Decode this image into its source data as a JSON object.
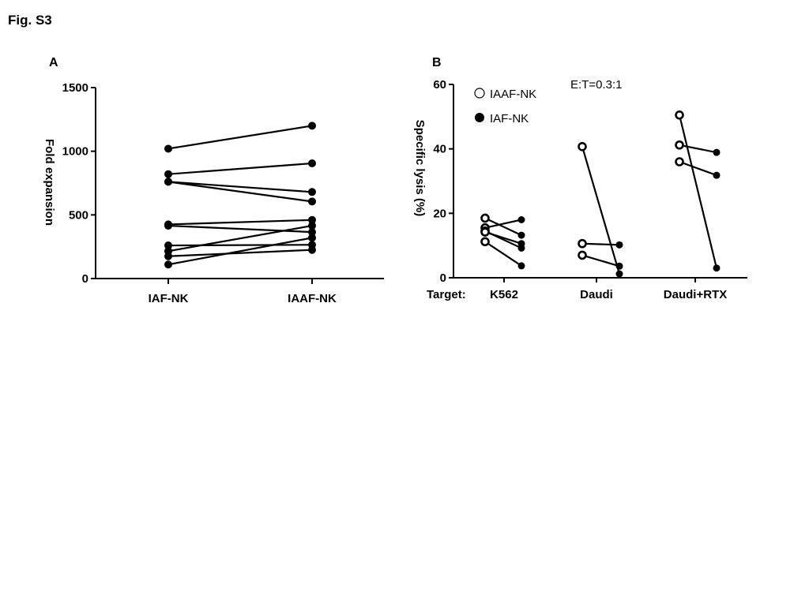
{
  "figure": {
    "title": "Fig. S3"
  },
  "chart_data": [
    {
      "panel_label": "A",
      "type": "scatter",
      "subtype": "paired-dot-plot",
      "ylabel": "Fold expansion",
      "ylim": [
        0,
        1500
      ],
      "yticks": [
        0,
        500,
        1000,
        1500
      ],
      "categories": [
        "IAF-NK",
        "IAAF-NK"
      ],
      "pairs": [
        [
          1020,
          1200
        ],
        [
          820,
          905
        ],
        [
          760,
          680
        ],
        [
          760,
          605
        ],
        [
          425,
          460
        ],
        [
          415,
          365
        ],
        [
          260,
          265
        ],
        [
          215,
          415
        ],
        [
          175,
          225
        ],
        [
          110,
          320
        ]
      ]
    },
    {
      "panel_label": "B",
      "type": "scatter",
      "subtype": "paired-dot-plot",
      "ylabel": "Specific lysis (%)",
      "ylim": [
        0,
        60
      ],
      "yticks": [
        0,
        20,
        40,
        60
      ],
      "xaxis_prefix": "Target:",
      "annotation": "E:T=0.3:1",
      "legend": {
        "placement": "top-left",
        "entries": [
          {
            "label": "IAAF-NK",
            "marker": "open-circle"
          },
          {
            "label": "IAF-NK",
            "marker": "filled-circle"
          }
        ]
      },
      "groups": [
        {
          "name": "K562",
          "pairs": [
            [
              18.5,
              13.2
            ],
            [
              15.5,
              18.0
            ],
            [
              14.5,
              9.2
            ],
            [
              14.2,
              10.6
            ],
            [
              11.2,
              3.7
            ]
          ]
        },
        {
          "name": "Daudi",
          "pairs": [
            [
              40.7,
              1.2
            ],
            [
              10.6,
              10.2
            ],
            [
              7.0,
              3.6
            ]
          ]
        },
        {
          "name": "Daudi+RTX",
          "pairs": [
            [
              50.5,
              3.0
            ],
            [
              41.2,
              38.9
            ],
            [
              36.0,
              31.8
            ]
          ]
        }
      ]
    }
  ]
}
